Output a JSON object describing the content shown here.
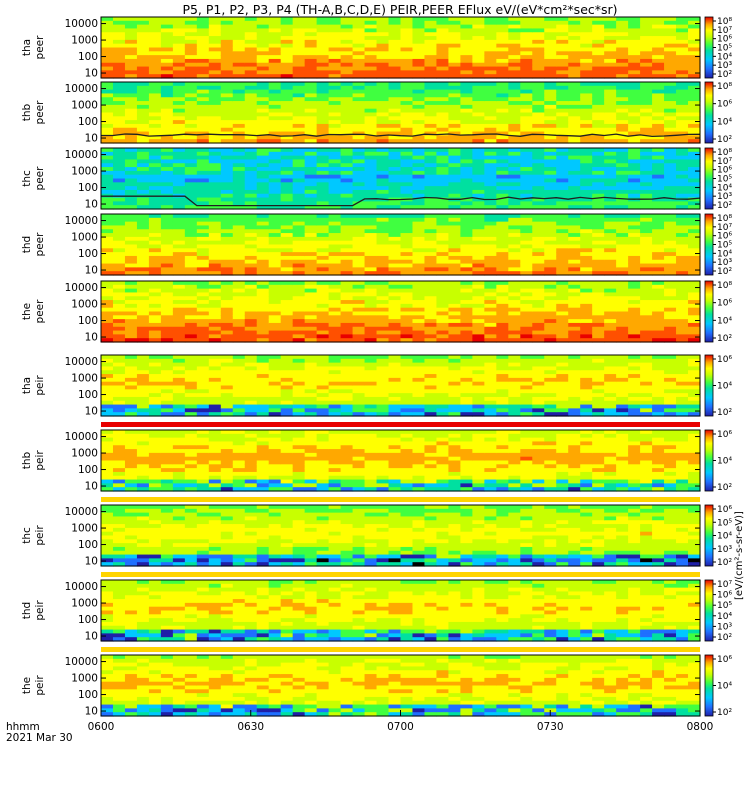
{
  "title": "P5, P1, P2, P3, P4 (TH-A,B,C,D,E) PEIR,PEER EFlux eV/(eV*cm²*sec*sr)",
  "colorbar_unit_label": "[eV/(cm²-s-sr-eV)]",
  "time_axis": {
    "label_line1": "hhmm",
    "label_line2": "2021 Mar 30",
    "ticks": [
      "0600",
      "0630",
      "0700",
      "0730",
      "0800"
    ]
  },
  "chart_data": {
    "type": "heatmap",
    "title": "P5, P1, P2, P3, P4 (TH-A,B,C,D,E) PEIR,PEER EFlux eV/(eV*cm²*sec*sr)",
    "x": {
      "range": [
        "0600",
        "0800"
      ],
      "ticks": [
        "0600",
        "0630",
        "0700",
        "0730",
        "0800"
      ],
      "label": "hhmm"
    },
    "y_scale": "log",
    "y_ticks": [
      "10000",
      "1000",
      "100",
      "10"
    ],
    "y_range": [
      5,
      25000
    ],
    "panels": [
      {
        "probe": "tha",
        "species": "peer",
        "ylabel": "tha peer",
        "cbar_ticks": [
          "10⁸",
          "10⁷",
          "10⁶",
          "10⁵",
          "10⁴",
          "10³",
          "10²"
        ],
        "cbar_range_exp": [
          2,
          8
        ],
        "bg_level": 0.72,
        "spacecraft_potential_line": false
      },
      {
        "probe": "thb",
        "species": "peer",
        "ylabel": "thb peer",
        "cbar_ticks": [
          "10⁸",
          "10⁶",
          "10⁴",
          "10²"
        ],
        "cbar_range_exp": [
          2,
          8
        ],
        "bg_level": 0.62,
        "spacecraft_potential_line": true
      },
      {
        "probe": "thc",
        "species": "peer",
        "ylabel": "thc peer",
        "cbar_ticks": [
          "10⁸",
          "10⁷",
          "10⁶",
          "10⁵",
          "10⁴",
          "10³",
          "10²"
        ],
        "cbar_range_exp": [
          2,
          8
        ],
        "bg_level": 0.3,
        "spacecraft_potential_line": true
      },
      {
        "probe": "thd",
        "species": "peer",
        "ylabel": "thd peer",
        "cbar_ticks": [
          "10⁸",
          "10⁷",
          "10⁶",
          "10⁵",
          "10⁴",
          "10³",
          "10²"
        ],
        "cbar_range_exp": [
          2,
          8
        ],
        "bg_level": 0.66,
        "spacecraft_potential_line": false
      },
      {
        "probe": "the",
        "species": "peer",
        "ylabel": "the peer",
        "cbar_ticks": [
          "10⁸",
          "10⁶",
          "10⁴",
          "10²"
        ],
        "cbar_range_exp": [
          2,
          8
        ],
        "bg_level": 0.74,
        "spacecraft_potential_line": false
      },
      {
        "probe": "tha",
        "species": "peir",
        "ylabel": "tha peir",
        "cbar_ticks": [
          "10⁶",
          "10⁴",
          "10²"
        ],
        "cbar_range_exp": [
          1,
          7
        ],
        "bg_level": 0.5,
        "spacecraft_potential_line": false
      },
      {
        "probe": "thb",
        "species": "peir",
        "ylabel": "thb peir",
        "cbar_ticks": [
          "10⁶",
          "10⁴",
          "10²"
        ],
        "cbar_range_exp": [
          1,
          7
        ],
        "bg_level": 0.55,
        "spacecraft_potential_line": false
      },
      {
        "probe": "thc",
        "species": "peir",
        "ylabel": "thc peir",
        "cbar_ticks": [
          "10⁶",
          "10⁵",
          "10⁴",
          "10³",
          "10²"
        ],
        "cbar_range_exp": [
          1,
          7
        ],
        "bg_level": 0.45,
        "spacecraft_potential_line": false
      },
      {
        "probe": "thd",
        "species": "peir",
        "ylabel": "thd peir",
        "cbar_ticks": [
          "10⁷",
          "10⁶",
          "10⁵",
          "10⁴",
          "10³",
          "10²"
        ],
        "cbar_range_exp": [
          1,
          7
        ],
        "bg_level": 0.5,
        "spacecraft_potential_line": false
      },
      {
        "probe": "the",
        "species": "peir",
        "ylabel": "the peir",
        "cbar_ticks": [
          "10⁶",
          "10⁴",
          "10²"
        ],
        "cbar_range_exp": [
          1,
          7
        ],
        "bg_level": 0.52,
        "spacecraft_potential_line": false
      }
    ]
  },
  "colors": {
    "colormap": [
      "#000000",
      "#1f1fa8",
      "#1f6fff",
      "#00c8ff",
      "#00e0a0",
      "#40ff40",
      "#c8ff00",
      "#ffff00",
      "#ffa800",
      "#ff5000",
      "#e80000"
    ],
    "saturation_strip": "#e80000",
    "potential_line": "#202020"
  }
}
